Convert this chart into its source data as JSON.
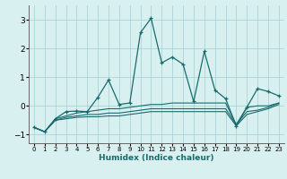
{
  "xlabel": "Humidex (Indice chaleur)",
  "background_color": "#d8f0f0",
  "grid_color": "#aad4d8",
  "line_color": "#1a6b6e",
  "xlim": [
    -0.5,
    23.5
  ],
  "ylim": [
    -1.3,
    3.5
  ],
  "yticks": [
    -1,
    0,
    1,
    2,
    3
  ],
  "xticks": [
    0,
    1,
    2,
    3,
    4,
    5,
    6,
    7,
    8,
    9,
    10,
    11,
    12,
    13,
    14,
    15,
    16,
    17,
    18,
    19,
    20,
    21,
    22,
    23
  ],
  "x": [
    0,
    1,
    2,
    3,
    4,
    5,
    6,
    7,
    8,
    9,
    10,
    11,
    12,
    13,
    14,
    15,
    16,
    17,
    18,
    19,
    20,
    21,
    22,
    23
  ],
  "series_main": [
    -0.75,
    -0.9,
    -0.45,
    -0.2,
    -0.18,
    -0.2,
    0.3,
    0.9,
    0.05,
    0.1,
    2.55,
    3.05,
    1.5,
    1.7,
    1.45,
    0.15,
    1.9,
    0.55,
    0.25,
    -0.7,
    -0.05,
    0.6,
    0.5,
    0.35
  ],
  "series2": [
    -0.75,
    -0.9,
    -0.45,
    -0.35,
    -0.25,
    -0.2,
    -0.15,
    -0.1,
    -0.1,
    -0.05,
    0.0,
    0.05,
    0.05,
    0.1,
    0.1,
    0.1,
    0.1,
    0.1,
    0.1,
    -0.65,
    -0.05,
    0.0,
    0.0,
    0.1
  ],
  "series3": [
    -0.75,
    -0.9,
    -0.5,
    -0.4,
    -0.35,
    -0.3,
    -0.3,
    -0.25,
    -0.25,
    -0.2,
    -0.15,
    -0.1,
    -0.1,
    -0.1,
    -0.1,
    -0.1,
    -0.1,
    -0.1,
    -0.1,
    -0.65,
    -0.2,
    -0.15,
    -0.05,
    0.1
  ],
  "series4": [
    -0.75,
    -0.9,
    -0.5,
    -0.45,
    -0.4,
    -0.38,
    -0.38,
    -0.35,
    -0.35,
    -0.3,
    -0.25,
    -0.2,
    -0.2,
    -0.2,
    -0.2,
    -0.2,
    -0.2,
    -0.2,
    -0.2,
    -0.7,
    -0.3,
    -0.2,
    -0.1,
    0.05
  ]
}
